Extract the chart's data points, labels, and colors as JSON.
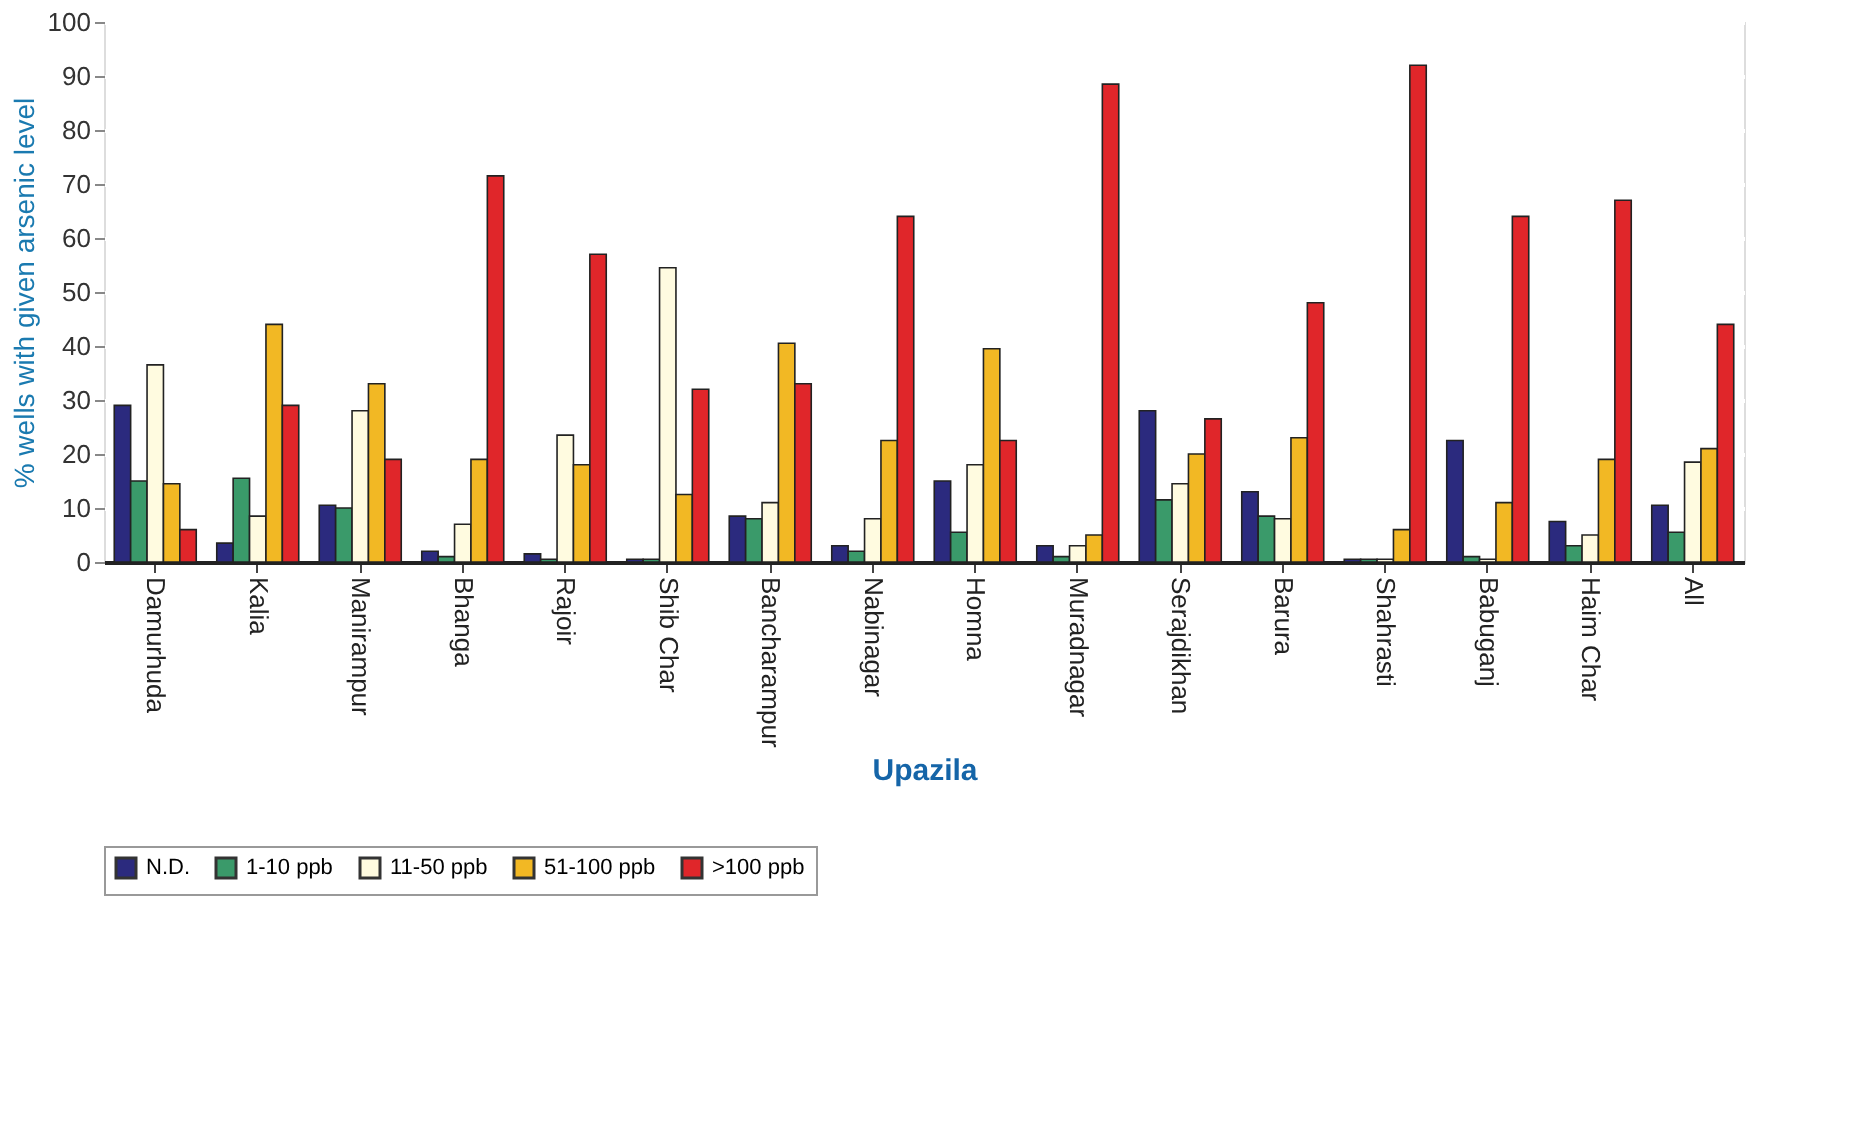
{
  "chart_data": {
    "type": "bar",
    "xlabel": "Upazila",
    "ylabel": "% wells with given arsenic level",
    "categories": [
      "Damurhuda",
      "Kalia",
      "Manirampur",
      "Bhanga",
      "Rajoir",
      "Shib Char",
      "Bancharampur",
      "Nabinagar",
      "Homna",
      "Muradnagar",
      "Serajdikhan",
      "Barura",
      "Shahrasti",
      "Babuganj",
      "Haim Char",
      "All"
    ],
    "series": [
      {
        "name": "N.D.",
        "color": "#2b2a7e",
        "values": [
          29,
          3.5,
          10.5,
          2,
          1.5,
          0.5,
          8.5,
          3,
          15,
          3,
          28,
          13,
          0.5,
          22.5,
          7.5,
          10.5
        ]
      },
      {
        "name": "1-10 ppb",
        "color": "#3a9a6a",
        "values": [
          15,
          15.5,
          10,
          1,
          0.5,
          0.5,
          8,
          2,
          5.5,
          1,
          11.5,
          8.5,
          0.5,
          1,
          3,
          5.5
        ]
      },
      {
        "name": "11-50 ppb",
        "color": "#fffbe0",
        "values": [
          36.5,
          8.5,
          28,
          7,
          23.5,
          54.5,
          11,
          8,
          18,
          3,
          14.5,
          8,
          0.5,
          0.5,
          5,
          18.5
        ]
      },
      {
        "name": "51-100 ppb",
        "color": "#f2b824",
        "values": [
          14.5,
          44,
          33,
          19,
          18,
          12.5,
          40.5,
          22.5,
          39.5,
          5,
          20,
          23,
          6,
          11,
          19,
          21
        ]
      },
      {
        "name": ">100 ppb",
        "color": "#e0262a",
        "values": [
          6,
          29,
          19,
          71.5,
          57,
          32,
          33,
          64,
          22.5,
          88.5,
          26.5,
          48,
          92,
          64,
          67,
          44
        ]
      }
    ],
    "ylim": [
      0,
      100
    ],
    "yticks": [
      0,
      10,
      20,
      30,
      40,
      50,
      60,
      70,
      80,
      90,
      100
    ],
    "grid": "y",
    "legend": "bottom"
  }
}
